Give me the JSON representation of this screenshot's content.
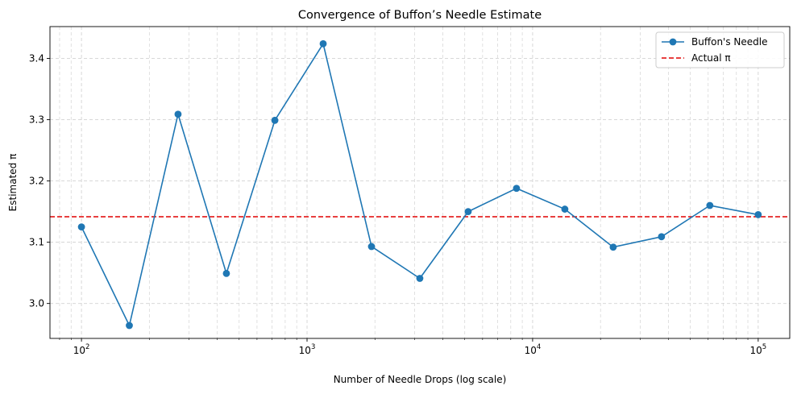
{
  "chart_data": {
    "type": "line",
    "title": "Convergence of Buffon’s Needle Estimate",
    "xlabel": "Number of Needle Drops (log scale)",
    "ylabel": "Estimated π",
    "x_scale": "log",
    "xlim": [
      72.5,
      138000
    ],
    "ylim": [
      2.943,
      3.452
    ],
    "x_ticks": [
      {
        "value": 100,
        "base": "10",
        "exp": "2"
      },
      {
        "value": 1000,
        "base": "10",
        "exp": "3"
      },
      {
        "value": 10000,
        "base": "10",
        "exp": "4"
      },
      {
        "value": 100000,
        "base": "10",
        "exp": "5"
      }
    ],
    "y_ticks": [
      {
        "value": 3.0,
        "label": "3.0"
      },
      {
        "value": 3.1,
        "label": "3.1"
      },
      {
        "value": 3.2,
        "label": "3.2"
      },
      {
        "value": 3.3,
        "label": "3.3"
      },
      {
        "value": 3.4,
        "label": "3.4"
      }
    ],
    "grid": true,
    "legend_position": "top-right",
    "series": [
      {
        "name": "Buffon's Needle",
        "color": "#1f77b4",
        "marker": "circle",
        "line_style": "solid",
        "points": [
          {
            "x": 100,
            "y": 3.125
          },
          {
            "x": 163,
            "y": 2.964
          },
          {
            "x": 268,
            "y": 3.309
          },
          {
            "x": 439,
            "y": 3.049
          },
          {
            "x": 720,
            "y": 3.299
          },
          {
            "x": 1179,
            "y": 3.424
          },
          {
            "x": 1931,
            "y": 3.093
          },
          {
            "x": 3162,
            "y": 3.041
          },
          {
            "x": 5179,
            "y": 3.15
          },
          {
            "x": 8483,
            "y": 3.188
          },
          {
            "x": 13895,
            "y": 3.154
          },
          {
            "x": 22758,
            "y": 3.092
          },
          {
            "x": 37276,
            "y": 3.109
          },
          {
            "x": 61054,
            "y": 3.16
          },
          {
            "x": 100000,
            "y": 3.145
          }
        ]
      },
      {
        "name": "Actual π",
        "color": "#e00000",
        "line_style": "dashed",
        "y": 3.14159
      }
    ]
  }
}
